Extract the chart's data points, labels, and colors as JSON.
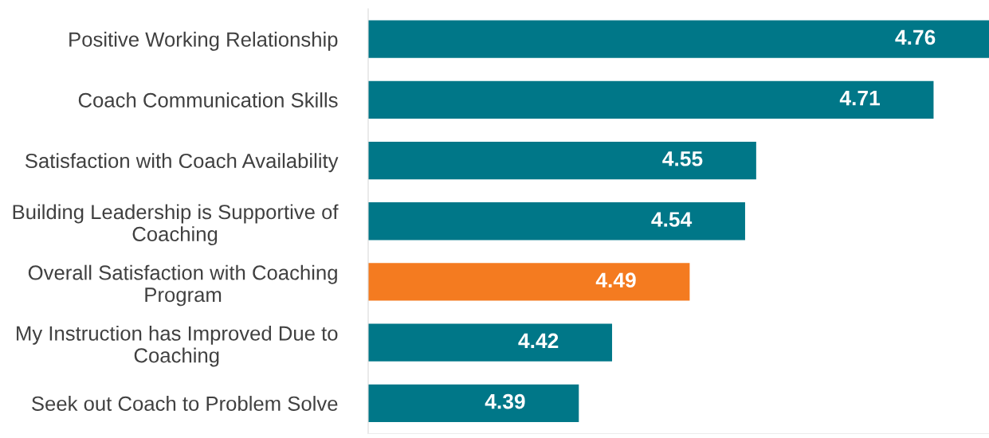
{
  "chart_data": {
    "type": "bar",
    "orientation": "horizontal",
    "categories": [
      "Positive Working Relationship",
      "Coach Communication Skills",
      "Satisfaction with Coach Availability",
      "Building Leadership is Supportive of\nCoaching",
      "Overall Satisfaction with Coaching\nProgram",
      "My Instruction has Improved Due to\nCoaching",
      "Seek out Coach to Problem Solve"
    ],
    "values": [
      4.76,
      4.71,
      4.55,
      4.54,
      4.49,
      4.42,
      4.39
    ],
    "colors": [
      "#007788",
      "#007788",
      "#007788",
      "#007788",
      "#f47b20",
      "#007788",
      "#007788"
    ],
    "xlim": [
      4.2,
      4.76
    ],
    "data_labels": true,
    "tick_labels": "y",
    "grid": false,
    "legend": false
  }
}
